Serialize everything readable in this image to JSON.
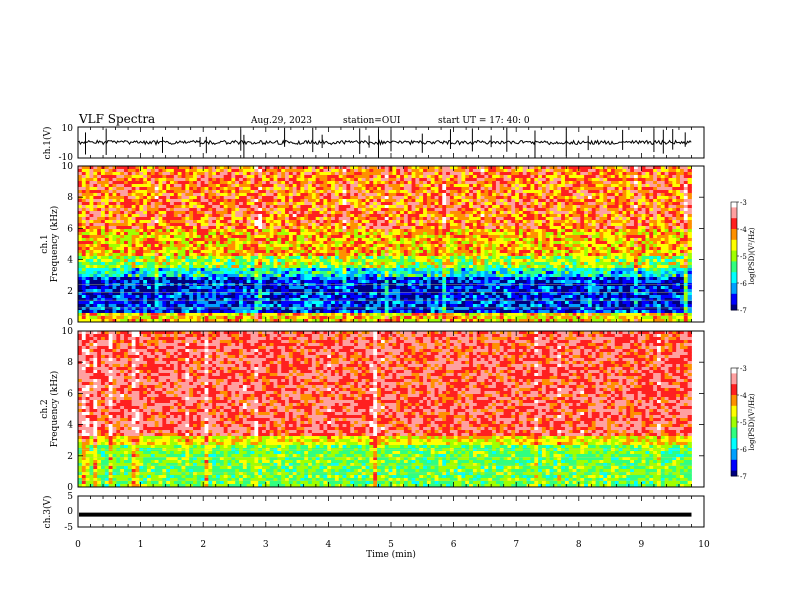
{
  "header": {
    "title": "VLF Spectra",
    "date": "Aug.29, 2023",
    "station": "station=OUI",
    "start": "start  UT =   17: 40: 0"
  },
  "colors": {
    "background": "#ffffff",
    "axis": "#000000",
    "colormap": [
      "#00007f",
      "#0000ff",
      "#00a0ff",
      "#00ffff",
      "#30ff80",
      "#a0ff00",
      "#ffff00",
      "#ff9000",
      "#ff2020",
      "#ffa0a0",
      "#ffffff"
    ]
  },
  "chart_data": [
    {
      "type": "line",
      "name": "ch1-waveform",
      "ylabel": "ch.1(V)",
      "yticks": [
        "10",
        "-10"
      ],
      "ylim": [
        -10,
        10
      ],
      "xlim": [
        0,
        10
      ],
      "baseline": 0,
      "trace_end_min": 9.8,
      "spike_times_min": [
        0.12,
        0.45,
        1.35,
        1.95,
        2.05,
        2.6,
        2.65,
        3.3,
        3.75,
        3.9,
        4.5,
        4.65,
        4.8,
        5.0,
        5.5,
        5.95,
        6.3,
        6.6,
        6.85,
        7.3,
        7.8,
        8.15,
        8.7,
        9.2,
        9.35,
        9.5,
        9.7
      ]
    },
    {
      "type": "heatmap",
      "name": "ch1-spectrogram",
      "ylabel": "ch.1 Frequency (kHz)",
      "yticks": [
        "0",
        "2",
        "4",
        "6",
        "8",
        "10"
      ],
      "ylim": [
        0,
        10
      ],
      "xlim": [
        0,
        10
      ],
      "data_end_min": 9.8,
      "colorbar": {
        "label": "log(PSD)(V²/Hz)",
        "ticks": [
          "-3",
          "-4",
          "-5",
          "-6",
          "-7"
        ],
        "range": [
          -7,
          -3
        ]
      },
      "bands_khz": [
        {
          "from": 0.0,
          "to": 0.5,
          "level": -4.5
        },
        {
          "from": 0.5,
          "to": 2.8,
          "level": -6.6
        },
        {
          "from": 2.8,
          "to": 3.4,
          "level": -5.8
        },
        {
          "from": 3.4,
          "to": 4.2,
          "level": -5.0
        },
        {
          "from": 4.2,
          "to": 6.0,
          "level": -4.4
        },
        {
          "from": 6.0,
          "to": 10.0,
          "level": -4.0
        }
      ]
    },
    {
      "type": "heatmap",
      "name": "ch2-spectrogram",
      "ylabel": "ch.2 Frequency (kHz)",
      "yticks": [
        "0",
        "2",
        "4",
        "6",
        "8",
        "10"
      ],
      "ylim": [
        0,
        10
      ],
      "xlim": [
        0,
        10
      ],
      "data_end_min": 9.8,
      "colorbar": {
        "label": "log(PSD)(V²/Hz)",
        "ticks": [
          "-3",
          "-4",
          "-5",
          "-6",
          "-7"
        ],
        "range": [
          -7,
          -3
        ]
      },
      "bands_khz": [
        {
          "from": 0.0,
          "to": 2.6,
          "level": -5.2
        },
        {
          "from": 2.6,
          "to": 3.2,
          "level": -4.6
        },
        {
          "from": 3.2,
          "to": 10.0,
          "level": -3.7
        }
      ]
    },
    {
      "type": "line",
      "name": "ch3-waveform",
      "ylabel": "ch.3(V)",
      "yticks": [
        "5",
        "0",
        "-5"
      ],
      "ylim": [
        -5,
        5
      ],
      "xlim": [
        0,
        10
      ],
      "baseline": -1,
      "trace_end_min": 9.8,
      "xlabel": "Time  (min)",
      "xticks": [
        "0",
        "1",
        "2",
        "3",
        "4",
        "5",
        "6",
        "7",
        "8",
        "9",
        "10"
      ]
    }
  ]
}
